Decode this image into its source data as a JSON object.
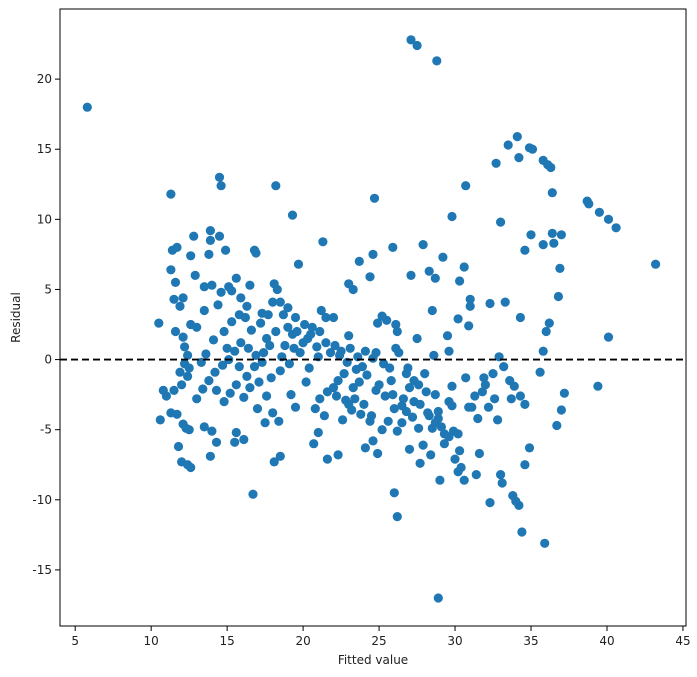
{
  "chart_data": {
    "type": "scatter",
    "title": "",
    "xlabel": "Fitted value",
    "ylabel": "Residual",
    "xlim": [
      4,
      45.2
    ],
    "ylim": [
      -19,
      25
    ],
    "xticks": [
      5,
      10,
      15,
      20,
      25,
      30,
      35,
      40,
      45
    ],
    "yticks": [
      -15,
      -10,
      -5,
      0,
      5,
      10,
      15,
      20
    ],
    "grid": false,
    "reference_line": {
      "y": 0,
      "style": "dashed",
      "color": "#000000"
    },
    "marker_color": "#1f77b4",
    "points": [
      [
        5.8,
        18.0
      ],
      [
        43.2,
        6.8
      ],
      [
        27.1,
        22.8
      ],
      [
        27.5,
        22.4
      ],
      [
        28.8,
        21.3
      ],
      [
        28.9,
        -17.0
      ],
      [
        11.3,
        11.8
      ],
      [
        14.5,
        13.0
      ],
      [
        14.6,
        12.4
      ],
      [
        18.2,
        12.4
      ],
      [
        19.3,
        10.3
      ],
      [
        24.7,
        11.5
      ],
      [
        30.7,
        12.4
      ],
      [
        29.8,
        10.2
      ],
      [
        32.7,
        14.0
      ],
      [
        33.5,
        15.3
      ],
      [
        34.1,
        15.9
      ],
      [
        34.2,
        14.4
      ],
      [
        34.9,
        15.1
      ],
      [
        35.1,
        15.0
      ],
      [
        35.8,
        14.2
      ],
      [
        36.1,
        13.9
      ],
      [
        36.3,
        13.7
      ],
      [
        36.4,
        11.9
      ],
      [
        38.7,
        11.3
      ],
      [
        38.8,
        11.1
      ],
      [
        39.5,
        10.5
      ],
      [
        40.1,
        10.0
      ],
      [
        40.6,
        9.4
      ],
      [
        33.0,
        9.8
      ],
      [
        34.6,
        7.8
      ],
      [
        35.0,
        8.9
      ],
      [
        35.8,
        8.2
      ],
      [
        36.4,
        9.0
      ],
      [
        36.5,
        8.3
      ],
      [
        37.0,
        8.9
      ],
      [
        36.9,
        6.5
      ],
      [
        36.8,
        4.5
      ],
      [
        36.0,
        2.0
      ],
      [
        36.2,
        2.6
      ],
      [
        35.8,
        0.6
      ],
      [
        34.3,
        3.0
      ],
      [
        40.1,
        1.6
      ],
      [
        39.4,
        -1.9
      ],
      [
        37.2,
        -2.4
      ],
      [
        37.0,
        -3.6
      ],
      [
        36.7,
        -4.7
      ],
      [
        35.9,
        -13.1
      ],
      [
        34.4,
        -12.3
      ],
      [
        34.2,
        -10.4
      ],
      [
        34.0,
        -10.1
      ],
      [
        33.8,
        -9.7
      ],
      [
        34.9,
        -6.3
      ],
      [
        34.6,
        -7.5
      ],
      [
        33.0,
        -8.2
      ],
      [
        33.1,
        -8.8
      ],
      [
        32.3,
        -10.2
      ],
      [
        33.9,
        -1.9
      ],
      [
        34.3,
        -2.6
      ],
      [
        34.6,
        -3.2
      ],
      [
        35.6,
        -0.9
      ],
      [
        33.3,
        4.1
      ],
      [
        32.3,
        4.0
      ],
      [
        32.9,
        0.2
      ],
      [
        31.9,
        -1.3
      ],
      [
        31.8,
        -2.3
      ],
      [
        32.6,
        -2.8
      ],
      [
        32.8,
        -4.3
      ],
      [
        31.6,
        -6.7
      ],
      [
        31.1,
        -3.4
      ],
      [
        30.7,
        -1.3
      ],
      [
        30.2,
        -5.3
      ],
      [
        30.9,
        -3.4
      ],
      [
        30.6,
        -8.6
      ],
      [
        30.2,
        -8.0
      ],
      [
        30.0,
        -7.1
      ],
      [
        31.4,
        -8.2
      ],
      [
        30.4,
        -7.7
      ],
      [
        31.0,
        4.3
      ],
      [
        31.0,
        3.8
      ],
      [
        30.6,
        6.6
      ],
      [
        30.9,
        2.4
      ],
      [
        30.2,
        2.9
      ],
      [
        29.5,
        1.7
      ],
      [
        29.6,
        0.6
      ],
      [
        30.3,
        5.6
      ],
      [
        29.8,
        -3.3
      ],
      [
        29.3,
        -5.3
      ],
      [
        28.5,
        -4.9
      ],
      [
        28.7,
        -4.5
      ],
      [
        28.9,
        -4.2
      ],
      [
        28.2,
        -3.8
      ],
      [
        27.9,
        -6.1
      ],
      [
        27.7,
        -7.4
      ],
      [
        27.6,
        -4.9
      ],
      [
        27.2,
        -4.1
      ],
      [
        26.8,
        -3.7
      ],
      [
        26.5,
        -4.5
      ],
      [
        26.2,
        -5.1
      ],
      [
        26.0,
        -9.5
      ],
      [
        26.2,
        -11.2
      ],
      [
        27.0,
        -6.4
      ],
      [
        28.0,
        -1.0
      ],
      [
        28.6,
        0.3
      ],
      [
        27.3,
        -1.5
      ],
      [
        26.8,
        -1.0
      ],
      [
        27.5,
        1.5
      ],
      [
        26.3,
        0.5
      ],
      [
        26.1,
        0.8
      ],
      [
        25.5,
        2.8
      ],
      [
        25.2,
        3.1
      ],
      [
        25.9,
        8.0
      ],
      [
        27.1,
        6.0
      ],
      [
        27.9,
        8.2
      ],
      [
        28.3,
        6.3
      ],
      [
        28.7,
        5.8
      ],
      [
        29.2,
        7.3
      ],
      [
        28.5,
        3.5
      ],
      [
        26.2,
        2.0
      ],
      [
        26.1,
        2.5
      ],
      [
        24.9,
        2.6
      ],
      [
        24.6,
        7.5
      ],
      [
        23.7,
        7.0
      ],
      [
        24.4,
        5.9
      ],
      [
        23.3,
        5.0
      ],
      [
        23.0,
        5.4
      ],
      [
        22.0,
        3.0
      ],
      [
        21.5,
        3.0
      ],
      [
        21.2,
        3.5
      ],
      [
        21.3,
        8.4
      ],
      [
        20.6,
        2.3
      ],
      [
        21.1,
        2.0
      ],
      [
        20.3,
        1.5
      ],
      [
        20.9,
        0.9
      ],
      [
        21.8,
        0.5
      ],
      [
        22.4,
        0.3
      ],
      [
        23.1,
        0.8
      ],
      [
        23.6,
        0.2
      ],
      [
        24.1,
        0.6
      ],
      [
        24.6,
        0.1
      ],
      [
        25.3,
        -0.3
      ],
      [
        25.7,
        -0.6
      ],
      [
        22.7,
        -1.0
      ],
      [
        22.3,
        -1.5
      ],
      [
        22.0,
        -2.0
      ],
      [
        21.6,
        -2.3
      ],
      [
        21.1,
        -2.8
      ],
      [
        20.8,
        -3.5
      ],
      [
        21.4,
        -4.0
      ],
      [
        21.0,
        -5.2
      ],
      [
        20.7,
        -6.0
      ],
      [
        21.6,
        -7.1
      ],
      [
        22.3,
        -6.8
      ],
      [
        22.6,
        -4.3
      ],
      [
        23.0,
        -3.2
      ],
      [
        23.4,
        -2.8
      ],
      [
        24.0,
        -3.2
      ],
      [
        24.4,
        -4.4
      ],
      [
        24.6,
        -5.8
      ],
      [
        24.9,
        -6.7
      ],
      [
        25.2,
        -5.0
      ],
      [
        25.6,
        -4.4
      ],
      [
        24.1,
        -6.3
      ],
      [
        23.3,
        -2.0
      ],
      [
        23.7,
        -1.6
      ],
      [
        24.8,
        -2.2
      ],
      [
        25.4,
        -2.6
      ],
      [
        25.9,
        -2.5
      ],
      [
        26.5,
        -3.3
      ],
      [
        27.3,
        -3.0
      ],
      [
        28.1,
        -2.3
      ],
      [
        28.9,
        -3.7
      ],
      [
        29.6,
        -3.0
      ],
      [
        28.4,
        -6.8
      ],
      [
        29.0,
        -8.6
      ],
      [
        29.3,
        -6.0
      ],
      [
        29.9,
        -5.1
      ],
      [
        12.0,
        -7.3
      ],
      [
        12.4,
        -7.5
      ],
      [
        12.6,
        -7.7
      ],
      [
        11.8,
        -6.2
      ],
      [
        12.1,
        -4.6
      ],
      [
        12.3,
        -4.9
      ],
      [
        12.5,
        -5.0
      ],
      [
        11.7,
        -3.9
      ],
      [
        11.5,
        -2.2
      ],
      [
        11.0,
        -2.6
      ],
      [
        10.8,
        -2.2
      ],
      [
        10.6,
        -4.3
      ],
      [
        11.3,
        -3.8
      ],
      [
        10.5,
        2.6
      ],
      [
        11.3,
        6.4
      ],
      [
        11.4,
        7.8
      ],
      [
        11.7,
        8.0
      ],
      [
        11.6,
        5.5
      ],
      [
        11.5,
        4.3
      ],
      [
        12.1,
        4.4
      ],
      [
        11.9,
        3.8
      ],
      [
        11.6,
        2.0
      ],
      [
        12.1,
        1.6
      ],
      [
        12.2,
        0.9
      ],
      [
        12.4,
        0.3
      ],
      [
        12.2,
        -0.3
      ],
      [
        12.5,
        -0.6
      ],
      [
        11.9,
        -0.9
      ],
      [
        12.4,
        -1.2
      ],
      [
        12.0,
        -1.8
      ],
      [
        12.6,
        2.5
      ],
      [
        13.0,
        2.3
      ],
      [
        12.9,
        6.0
      ],
      [
        13.5,
        3.5
      ],
      [
        12.6,
        7.4
      ],
      [
        12.8,
        8.8
      ],
      [
        13.8,
        7.5
      ],
      [
        13.9,
        8.5
      ],
      [
        13.9,
        9.2
      ],
      [
        14.5,
        8.8
      ],
      [
        14.9,
        7.8
      ],
      [
        13.5,
        5.2
      ],
      [
        14.0,
        5.3
      ],
      [
        14.4,
        3.9
      ],
      [
        14.6,
        4.8
      ],
      [
        15.1,
        5.2
      ],
      [
        15.3,
        4.9
      ],
      [
        15.6,
        5.8
      ],
      [
        15.9,
        4.4
      ],
      [
        16.3,
        3.8
      ],
      [
        16.8,
        7.8
      ],
      [
        16.9,
        7.6
      ],
      [
        16.5,
        5.3
      ],
      [
        17.3,
        3.3
      ],
      [
        17.7,
        3.2
      ],
      [
        18.0,
        4.1
      ],
      [
        18.1,
        5.4
      ],
      [
        18.3,
        5.0
      ],
      [
        18.5,
        4.1
      ],
      [
        18.7,
        3.2
      ],
      [
        19.0,
        2.3
      ],
      [
        19.3,
        1.8
      ],
      [
        19.7,
        6.8
      ],
      [
        19.5,
        3.0
      ],
      [
        19.6,
        2.0
      ],
      [
        20.0,
        1.2
      ],
      [
        19.8,
        0.5
      ],
      [
        19.1,
        -0.3
      ],
      [
        18.5,
        -0.8
      ],
      [
        17.9,
        -1.3
      ],
      [
        17.3,
        -0.2
      ],
      [
        16.9,
        0.3
      ],
      [
        16.4,
        0.8
      ],
      [
        15.9,
        1.2
      ],
      [
        15.5,
        0.6
      ],
      [
        15.1,
        0.0
      ],
      [
        14.7,
        -0.4
      ],
      [
        14.2,
        -0.9
      ],
      [
        13.8,
        -1.5
      ],
      [
        13.4,
        -2.1
      ],
      [
        13.0,
        -2.8
      ],
      [
        14.3,
        -2.2
      ],
      [
        14.8,
        -3.0
      ],
      [
        15.2,
        -2.4
      ],
      [
        15.6,
        -1.8
      ],
      [
        16.1,
        -2.7
      ],
      [
        16.5,
        -2.0
      ],
      [
        17.1,
        -1.6
      ],
      [
        17.6,
        -2.6
      ],
      [
        18.0,
        -3.8
      ],
      [
        17.5,
        -4.5
      ],
      [
        17.0,
        -3.5
      ],
      [
        16.7,
        -9.6
      ],
      [
        15.5,
        -5.9
      ],
      [
        15.6,
        -5.2
      ],
      [
        16.1,
        -5.7
      ],
      [
        14.0,
        -5.1
      ],
      [
        13.5,
        -4.8
      ],
      [
        13.9,
        -6.9
      ],
      [
        14.3,
        -5.9
      ],
      [
        18.1,
        -7.3
      ],
      [
        18.5,
        -6.9
      ],
      [
        18.4,
        -4.4
      ],
      [
        19.2,
        -2.5
      ],
      [
        19.5,
        -3.4
      ],
      [
        20.2,
        -1.6
      ],
      [
        20.4,
        -0.6
      ],
      [
        21.0,
        0.2
      ],
      [
        13.3,
        -0.2
      ],
      [
        13.6,
        0.4
      ],
      [
        14.1,
        1.4
      ],
      [
        14.8,
        2.0
      ],
      [
        15.3,
        2.7
      ],
      [
        15.8,
        3.2
      ],
      [
        16.2,
        3.0
      ],
      [
        16.6,
        2.1
      ],
      [
        17.2,
        2.6
      ],
      [
        17.6,
        1.5
      ],
      [
        18.2,
        2.0
      ],
      [
        18.8,
        1.0
      ],
      [
        19.0,
        3.7
      ],
      [
        20.1,
        2.5
      ],
      [
        22.5,
        0.6
      ],
      [
        23.0,
        1.7
      ],
      [
        23.5,
        -0.7
      ],
      [
        24.2,
        -1.1
      ],
      [
        25.0,
        -1.8
      ],
      [
        22.2,
        -2.6
      ],
      [
        22.8,
        -2.9
      ],
      [
        23.2,
        -3.6
      ],
      [
        23.8,
        -3.9
      ],
      [
        24.5,
        -4.0
      ],
      [
        26.0,
        -3.5
      ],
      [
        26.6,
        -2.8
      ],
      [
        27.0,
        -2.0
      ],
      [
        27.7,
        -3.2
      ],
      [
        28.3,
        -4.0
      ],
      [
        29.1,
        -4.8
      ],
      [
        29.6,
        -5.5
      ],
      [
        30.3,
        -6.5
      ],
      [
        31.5,
        -4.2
      ],
      [
        31.3,
        -2.6
      ],
      [
        32.2,
        -3.4
      ],
      [
        32.0,
        -1.8
      ],
      [
        32.5,
        -1.0
      ],
      [
        33.2,
        -0.5
      ],
      [
        33.6,
        -1.5
      ],
      [
        33.7,
        -2.8
      ],
      [
        15.0,
        0.8
      ],
      [
        15.8,
        -0.5
      ],
      [
        16.3,
        -1.2
      ],
      [
        16.8,
        -0.5
      ],
      [
        17.4,
        0.5
      ],
      [
        17.8,
        1.0
      ],
      [
        18.6,
        0.2
      ],
      [
        19.4,
        0.8
      ],
      [
        20.5,
        1.8
      ],
      [
        21.5,
        1.2
      ],
      [
        22.1,
        1.0
      ],
      [
        22.9,
        -0.2
      ],
      [
        23.9,
        -0.5
      ],
      [
        24.8,
        0.5
      ],
      [
        25.8,
        -1.5
      ],
      [
        26.9,
        -0.6
      ],
      [
        27.6,
        -1.8
      ],
      [
        28.7,
        -2.5
      ],
      [
        29.8,
        -1.9
      ]
    ]
  }
}
